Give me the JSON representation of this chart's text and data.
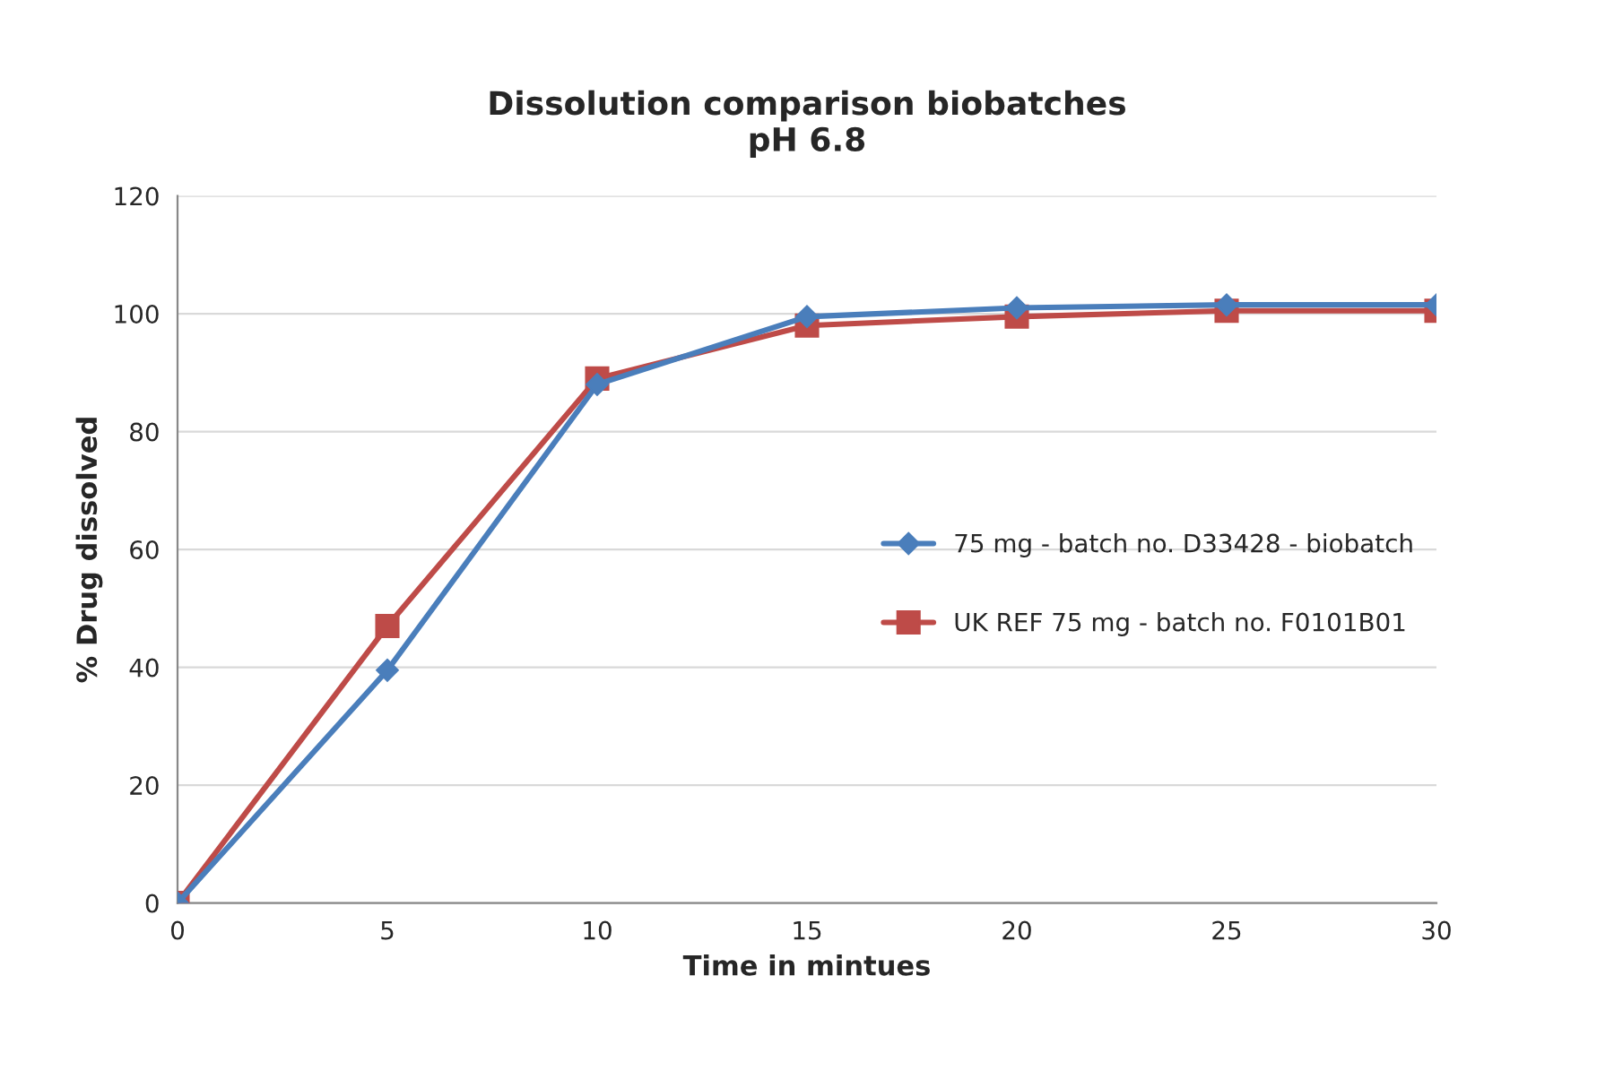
{
  "chart_data": {
    "type": "line",
    "title": "Dissolution comparison biobatches\npH 6.8",
    "xlabel": "Time in mintues",
    "ylabel": "% Drug dissolved",
    "x": [
      0,
      5,
      10,
      15,
      20,
      25,
      30
    ],
    "series": [
      {
        "name": "75 mg - batch no. D33428 - biobatch",
        "color": "#4a7ebb",
        "marker": "diamond",
        "values": [
          0,
          39.5,
          88,
          99.5,
          101,
          101.5,
          101.5
        ]
      },
      {
        "name": "UK REF 75 mg - batch no. F0101B01",
        "color": "#be4b48",
        "marker": "square",
        "values": [
          0,
          47,
          89,
          98,
          99.5,
          100.5,
          100.5
        ]
      }
    ],
    "xlim": [
      0,
      30
    ],
    "xticks": [
      0,
      5,
      10,
      15,
      20,
      25,
      30
    ],
    "ylim": [
      0,
      120
    ],
    "yticks": [
      0,
      20,
      40,
      60,
      80,
      100,
      120
    ],
    "grid": "y",
    "legend": "center right",
    "line_style": "solid"
  }
}
